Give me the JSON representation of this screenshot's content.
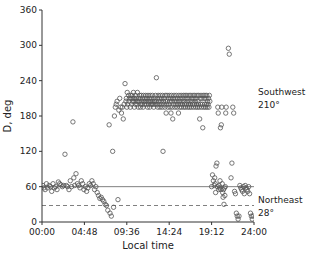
{
  "chart_data": {
    "type": "scatter",
    "xlabel": "Local time",
    "ylabel": "D, deg",
    "xlim": [
      0,
      24
    ],
    "ylim": [
      0,
      360
    ],
    "xticks": [
      {
        "value": 0,
        "label": "00:00"
      },
      {
        "value": 4.8,
        "label": "04:48"
      },
      {
        "value": 9.6,
        "label": "09:36"
      },
      {
        "value": 14.4,
        "label": "14:24"
      },
      {
        "value": 19.2,
        "label": "19:12"
      },
      {
        "value": 24.0,
        "label": "24:00"
      }
    ],
    "yticks": [
      0,
      60,
      120,
      180,
      240,
      300,
      360
    ],
    "grid": false,
    "color": "#555555",
    "marker": "open-circle",
    "reference_lines": [
      {
        "y": 60,
        "line_style": "solid",
        "color": "gray"
      },
      {
        "y": 28,
        "line_style": "dashed",
        "color": "gray"
      }
    ],
    "annotations": [
      {
        "text": "Southwest",
        "label": "210°",
        "value": 210
      },
      {
        "text": "Northeast",
        "label": "28°",
        "value": 28
      }
    ],
    "x": [
      0.1,
      0.22,
      0.35,
      0.5,
      0.65,
      0.8,
      0.95,
      1.1,
      1.25,
      1.4,
      1.55,
      1.7,
      1.85,
      2.0,
      2.15,
      2.3,
      2.45,
      2.6,
      2.75,
      2.9,
      3.05,
      3.2,
      3.35,
      3.5,
      3.6,
      3.7,
      3.85,
      4.0,
      4.15,
      4.3,
      4.45,
      4.6,
      4.75,
      4.9,
      5.05,
      5.2,
      5.35,
      5.5,
      5.65,
      5.8,
      5.95,
      6.1,
      6.25,
      6.4,
      6.55,
      6.7,
      6.85,
      7.0,
      7.15,
      7.3,
      7.45,
      7.6,
      7.7,
      7.85,
      8.0,
      8.1,
      8.2,
      8.3,
      8.4,
      8.5,
      8.6,
      8.7,
      8.8,
      8.9,
      9.0,
      9.1,
      9.2,
      9.3,
      9.4,
      9.5,
      9.55,
      9.6,
      9.65,
      9.7,
      9.8,
      9.85,
      9.9,
      10.0,
      10.05,
      10.1,
      10.15,
      10.2,
      10.25,
      10.3,
      10.35,
      10.4,
      10.45,
      10.5,
      10.55,
      10.6,
      10.65,
      10.7,
      10.75,
      10.8,
      10.85,
      10.9,
      10.95,
      11.0,
      11.05,
      11.1,
      11.15,
      11.2,
      11.25,
      11.3,
      11.35,
      11.4,
      11.45,
      11.5,
      11.55,
      11.6,
      11.65,
      11.7,
      11.75,
      11.8,
      11.85,
      11.9,
      11.95,
      12.0,
      12.05,
      12.1,
      12.15,
      12.2,
      12.25,
      12.3,
      12.35,
      12.4,
      12.45,
      12.5,
      12.55,
      12.6,
      12.65,
      12.7,
      12.75,
      12.8,
      12.85,
      12.9,
      12.95,
      13.0,
      13.05,
      13.1,
      13.15,
      13.2,
      13.25,
      13.3,
      13.35,
      13.4,
      13.45,
      13.5,
      13.55,
      13.6,
      13.65,
      13.7,
      13.75,
      13.8,
      13.85,
      13.9,
      13.95,
      14.0,
      14.05,
      14.1,
      14.15,
      14.2,
      14.25,
      14.3,
      14.35,
      14.4,
      14.45,
      14.5,
      14.55,
      14.6,
      14.65,
      14.7,
      14.75,
      14.8,
      14.85,
      14.9,
      14.95,
      15.0,
      15.05,
      15.1,
      15.15,
      15.2,
      15.25,
      15.3,
      15.35,
      15.4,
      15.45,
      15.5,
      15.55,
      15.6,
      15.65,
      15.7,
      15.75,
      15.8,
      15.85,
      15.9,
      15.95,
      16.0,
      16.05,
      16.1,
      16.15,
      16.2,
      16.25,
      16.3,
      16.35,
      16.4,
      16.45,
      16.5,
      16.55,
      16.6,
      16.65,
      16.7,
      16.75,
      16.8,
      16.85,
      16.9,
      16.95,
      17.0,
      17.05,
      17.1,
      17.15,
      17.2,
      17.25,
      17.3,
      17.35,
      17.4,
      17.45,
      17.5,
      17.55,
      17.6,
      17.65,
      17.7,
      17.75,
      17.8,
      17.85,
      17.9,
      17.95,
      18.0,
      18.05,
      18.1,
      18.15,
      18.2,
      18.25,
      18.3,
      18.35,
      18.4,
      18.45,
      18.5,
      18.55,
      18.6,
      18.65,
      18.7,
      18.75,
      18.8,
      18.85,
      18.9,
      18.95,
      19.0,
      19.2,
      19.3,
      19.4,
      19.5,
      19.55,
      19.6,
      19.65,
      19.7,
      19.8,
      19.85,
      19.9,
      19.95,
      20.0,
      20.05,
      20.1,
      20.15,
      20.2,
      20.25,
      20.3,
      20.35,
      20.4,
      20.45,
      20.5,
      20.55,
      20.6,
      20.65,
      20.7,
      20.75,
      20.8,
      20.85,
      21.1,
      21.2,
      21.4,
      21.5,
      21.6,
      21.7,
      21.8,
      21.9,
      22.0,
      22.1,
      22.2,
      22.3,
      22.4,
      22.5,
      22.6,
      22.7,
      22.8,
      22.9,
      23.0,
      23.1,
      23.2,
      23.3,
      23.4,
      23.5,
      23.6,
      23.7,
      23.8,
      23.9
    ],
    "values": [
      62,
      58,
      55,
      65,
      58,
      62,
      60,
      52,
      65,
      58,
      60,
      55,
      68,
      65,
      63,
      60,
      62,
      115,
      62,
      60,
      55,
      70,
      60,
      170,
      75,
      62,
      82,
      65,
      62,
      58,
      70,
      65,
      55,
      60,
      52,
      58,
      65,
      62,
      70,
      65,
      55,
      60,
      50,
      45,
      40,
      42,
      38,
      35,
      30,
      28,
      20,
      165,
      15,
      10,
      120,
      25,
      180,
      195,
      200,
      205,
      38,
      190,
      210,
      195,
      185,
      195,
      175,
      200,
      235,
      205,
      210,
      195,
      220,
      200,
      215,
      205,
      210,
      195,
      215,
      210,
      200,
      215,
      205,
      210,
      220,
      205,
      195,
      210,
      200,
      215,
      205,
      210,
      200,
      220,
      205,
      195,
      210,
      205,
      215,
      210,
      195,
      200,
      215,
      205,
      200,
      210,
      195,
      215,
      205,
      200,
      210,
      205,
      215,
      200,
      210,
      205,
      195,
      215,
      200,
      205,
      210,
      195,
      215,
      205,
      200,
      210,
      200,
      215,
      205,
      200,
      195,
      210,
      205,
      200,
      215,
      205,
      245,
      200,
      210,
      195,
      215,
      205,
      200,
      210,
      195,
      215,
      205,
      200,
      210,
      195,
      215,
      120,
      205,
      200,
      210,
      195,
      215,
      205,
      185,
      200,
      215,
      205,
      195,
      210,
      200,
      215,
      205,
      195,
      210,
      185,
      215,
      205,
      195,
      175,
      210,
      200,
      215,
      205,
      195,
      210,
      200,
      215,
      205,
      195,
      210,
      200,
      185,
      215,
      205,
      195,
      210,
      200,
      215,
      195,
      205,
      200,
      210,
      215,
      195,
      205,
      200,
      215,
      195,
      210,
      200,
      215,
      205,
      195,
      210,
      200,
      215,
      195,
      205,
      200,
      215,
      195,
      210,
      205,
      200,
      215,
      195,
      210,
      200,
      215,
      205,
      195,
      210,
      200,
      215,
      195,
      205,
      200,
      215,
      195,
      175,
      210,
      200,
      215,
      195,
      210,
      200,
      160,
      215,
      195,
      210,
      200,
      215,
      195,
      210,
      200,
      215,
      195,
      205,
      200,
      210,
      195,
      215,
      205,
      60,
      80,
      70,
      62,
      75,
      65,
      50,
      95,
      100,
      60,
      195,
      185,
      55,
      62,
      58,
      70,
      160,
      55,
      165,
      195,
      65,
      50,
      42,
      55,
      30,
      58,
      45,
      60,
      185,
      195,
      295,
      285,
      75,
      100,
      195,
      185,
      52,
      48,
      15,
      10,
      5,
      10,
      62,
      58,
      55,
      52,
      60,
      48,
      62,
      58,
      55,
      52,
      60,
      48,
      15,
      10,
      5,
      10
    ]
  }
}
